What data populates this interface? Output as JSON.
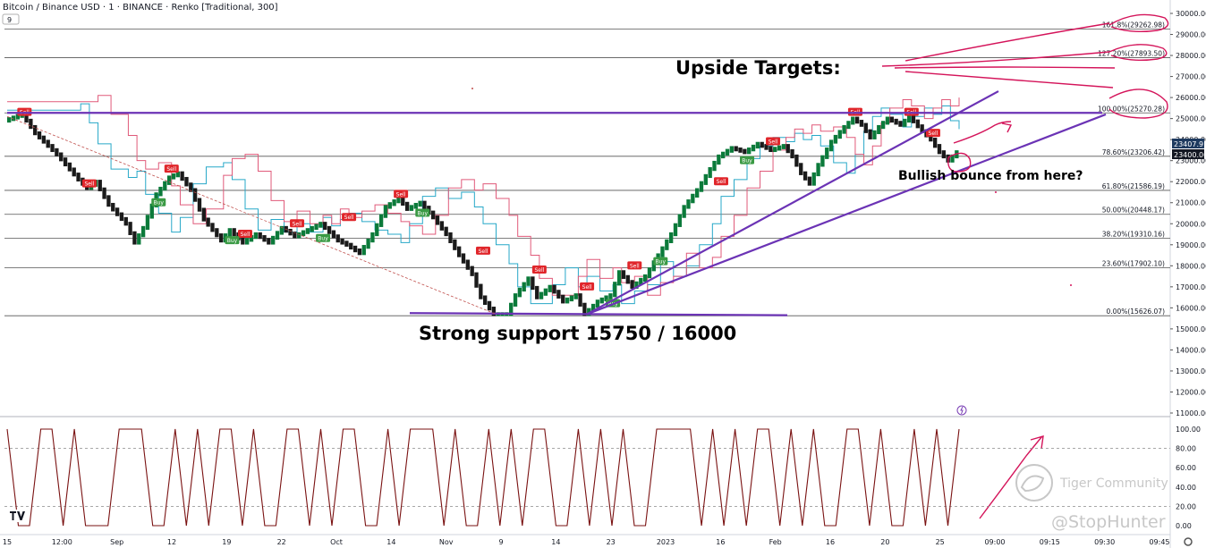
{
  "header": {
    "title": "Bitcoin / Binance USD · 1 · BINANCE · Renko [Traditional, 300]",
    "indicator_count": "9"
  },
  "colors": {
    "up_brick": "#0b7a3a",
    "down_brick": "#1a1a1a",
    "sell_signal": "#e0262b",
    "buy_signal": "#3a9a44",
    "trendline": "#6b33b5",
    "handdrawn": "#d4145a",
    "fib_line": "#555555",
    "oscillator": "#7a1212",
    "support_cyan": "#27a8c8",
    "support_pink": "#e05a7a",
    "price_label_bg": "#1e3a5f"
  },
  "annotations": {
    "upside_targets": "Upside Targets:",
    "strong_support": "Strong support 15750 / 16000",
    "bullish_bounce": "Bullish bounce from here?"
  },
  "price_labels": {
    "last": "23407.91",
    "level": "23400.00"
  },
  "signals": {
    "sell": "Sell",
    "buy": "Buy"
  },
  "watermark": {
    "community": "Tiger Community",
    "handle": "@StopHunter"
  },
  "chart_data": [
    {
      "type": "line",
      "name": "renko-price",
      "ylim": [
        11000,
        30000
      ],
      "yticks": [
        "30000.00",
        "29000.00",
        "28000.00",
        "27000.00",
        "26000.00",
        "25000.00",
        "24000.00",
        "23000.00",
        "22000.00",
        "21000.00",
        "20000.00",
        "19000.00",
        "18000.00",
        "17000.00",
        "16000.00",
        "15000.00",
        "14000.00",
        "13000.00",
        "12000.00",
        "11000.00"
      ],
      "xticks": [
        "15",
        "12:00",
        "Sep",
        "12",
        "19",
        "22",
        "Oct",
        "14",
        "Nov",
        "9",
        "14",
        "23",
        "2023",
        "16",
        "Feb",
        "16",
        "20",
        "25",
        "09:00",
        "09:15",
        "09:30",
        "09:45"
      ],
      "fib_levels": [
        {
          "label": "161.8%(29262.98)",
          "value": 29262.98
        },
        {
          "label": "127.20%(27893.50)",
          "value": 27893.5
        },
        {
          "label": "100.00%(25270.28)",
          "value": 25270.28
        },
        {
          "label": "78.60%(23206.42)",
          "value": 23206.42
        },
        {
          "label": "61.80%(21586.19)",
          "value": 21586.19
        },
        {
          "label": "50.00%(20448.17)",
          "value": 20448.17
        },
        {
          "label": "38.20%(19310.16)",
          "value": 19310.16
        },
        {
          "label": "23.60%(17902.10)",
          "value": 17902.1
        },
        {
          "label": "0.00%(15626.07)",
          "value": 15626.07
        }
      ],
      "price_path": [
        [
          0,
          24900
        ],
        [
          4,
          25200
        ],
        [
          7,
          24300
        ],
        [
          12,
          23300
        ],
        [
          17,
          22100
        ],
        [
          19,
          21700
        ],
        [
          21,
          22000
        ],
        [
          24,
          20900
        ],
        [
          28,
          20000
        ],
        [
          30,
          19100
        ],
        [
          32,
          19800
        ],
        [
          35,
          21400
        ],
        [
          38,
          22200
        ],
        [
          40,
          22400
        ],
        [
          43,
          21600
        ],
        [
          46,
          20200
        ],
        [
          50,
          19200
        ],
        [
          52,
          19700
        ],
        [
          55,
          19100
        ],
        [
          58,
          19500
        ],
        [
          61,
          19100
        ],
        [
          64,
          19800
        ],
        [
          67,
          19400
        ],
        [
          70,
          19700
        ],
        [
          73,
          20000
        ],
        [
          75,
          19600
        ],
        [
          77,
          19200
        ],
        [
          79,
          19000
        ],
        [
          82,
          18600
        ],
        [
          85,
          19500
        ],
        [
          88,
          20800
        ],
        [
          91,
          21200
        ],
        [
          93,
          20700
        ],
        [
          96,
          21000
        ],
        [
          99,
          20300
        ],
        [
          102,
          19500
        ],
        [
          105,
          18500
        ],
        [
          108,
          17600
        ],
        [
          110,
          16500
        ],
        [
          113,
          15700
        ],
        [
          116,
          15700
        ],
        [
          118,
          16600
        ],
        [
          121,
          17400
        ],
        [
          123,
          16500
        ],
        [
          126,
          17000
        ],
        [
          129,
          16300
        ],
        [
          132,
          16600
        ],
        [
          134,
          15700
        ],
        [
          137,
          16300
        ],
        [
          140,
          16600
        ],
        [
          142,
          17700
        ],
        [
          145,
          17000
        ],
        [
          148,
          17500
        ],
        [
          151,
          18500
        ],
        [
          154,
          19500
        ],
        [
          157,
          20800
        ],
        [
          160,
          21600
        ],
        [
          163,
          22600
        ],
        [
          165,
          23200
        ],
        [
          168,
          23600
        ],
        [
          171,
          23400
        ],
        [
          174,
          23800
        ],
        [
          177,
          23500
        ],
        [
          180,
          23700
        ],
        [
          182,
          23200
        ],
        [
          184,
          22400
        ],
        [
          186,
          21900
        ],
        [
          188,
          22800
        ],
        [
          191,
          23900
        ],
        [
          194,
          24600
        ],
        [
          196,
          25000
        ],
        [
          198,
          24700
        ],
        [
          200,
          24100
        ],
        [
          202,
          24600
        ],
        [
          204,
          25000
        ],
        [
          207,
          24700
        ],
        [
          209,
          25100
        ],
        [
          212,
          24400
        ],
        [
          214,
          24000
        ],
        [
          216,
          23400
        ],
        [
          218,
          23000
        ],
        [
          220,
          23400
        ]
      ],
      "signals": [
        {
          "kind": "sell",
          "x": 4,
          "y": 25300
        },
        {
          "kind": "sell",
          "x": 19,
          "y": 21900
        },
        {
          "kind": "sell",
          "x": 38,
          "y": 22600
        },
        {
          "kind": "sell",
          "x": 55,
          "y": 19500
        },
        {
          "kind": "sell",
          "x": 67,
          "y": 20000
        },
        {
          "kind": "sell",
          "x": 79,
          "y": 20300
        },
        {
          "kind": "sell",
          "x": 91,
          "y": 21400
        },
        {
          "kind": "sell",
          "x": 110,
          "y": 18700
        },
        {
          "kind": "sell",
          "x": 123,
          "y": 17800
        },
        {
          "kind": "sell",
          "x": 134,
          "y": 17000
        },
        {
          "kind": "sell",
          "x": 145,
          "y": 18000
        },
        {
          "kind": "sell",
          "x": 165,
          "y": 22000
        },
        {
          "kind": "sell",
          "x": 177,
          "y": 23900
        },
        {
          "kind": "sell",
          "x": 196,
          "y": 25300
        },
        {
          "kind": "sell",
          "x": 209,
          "y": 25300
        },
        {
          "kind": "sell",
          "x": 214,
          "y": 24300
        },
        {
          "kind": "buy",
          "x": 35,
          "y": 21000
        },
        {
          "kind": "buy",
          "x": 52,
          "y": 19200
        },
        {
          "kind": "buy",
          "x": 73,
          "y": 19300
        },
        {
          "kind": "buy",
          "x": 96,
          "y": 20500
        },
        {
          "kind": "buy",
          "x": 140,
          "y": 16200
        },
        {
          "kind": "buy",
          "x": 151,
          "y": 18200
        },
        {
          "kind": "buy",
          "x": 171,
          "y": 23000
        }
      ]
    },
    {
      "type": "line",
      "name": "oscillator",
      "ylim": [
        0,
        100
      ],
      "yticks": [
        "100.00",
        "80.00",
        "60.00",
        "40.00",
        "20.00",
        "0.00"
      ],
      "dashed_levels": [
        80,
        20
      ],
      "pattern": [
        100,
        0,
        0,
        100,
        100,
        0,
        100,
        0,
        0,
        0,
        100,
        100,
        100,
        0,
        0,
        100,
        0,
        100,
        0,
        100,
        100,
        0,
        100,
        0,
        0,
        100,
        100,
        0,
        100,
        0,
        100,
        100,
        0,
        0,
        100,
        0,
        100,
        100,
        100,
        0,
        100,
        0,
        0,
        100,
        0,
        100,
        0,
        100,
        100,
        0,
        0,
        100,
        0,
        100,
        0,
        100,
        0,
        0,
        100,
        100,
        100,
        100,
        0,
        100,
        0,
        100,
        0,
        100,
        100,
        0,
        100,
        0,
        100,
        0,
        0,
        100,
        100,
        0,
        100,
        0,
        0,
        100,
        0,
        100,
        0,
        100
      ]
    }
  ]
}
